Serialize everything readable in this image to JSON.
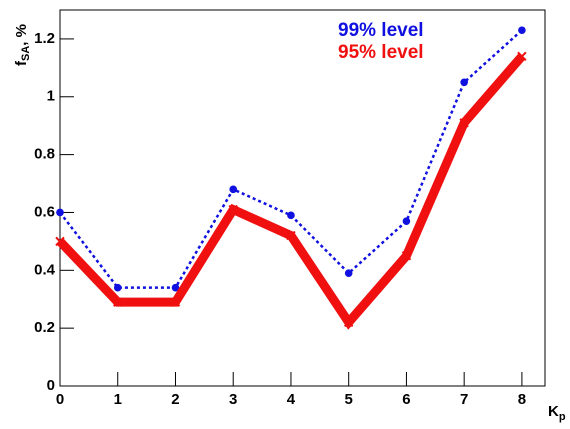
{
  "chart_data": {
    "type": "line",
    "x_label": {
      "main": "K",
      "sub": "p"
    },
    "y_label": {
      "main": "f",
      "sub": "SA",
      "suffix": ", %"
    },
    "x": [
      0,
      1,
      2,
      3,
      4,
      5,
      6,
      7,
      8
    ],
    "series": [
      {
        "name": "99% level",
        "color": "#1010e0",
        "line_style": "dotted",
        "marker": "circle",
        "values": [
          0.6,
          0.34,
          0.34,
          0.68,
          0.59,
          0.39,
          0.57,
          1.05,
          1.23
        ]
      },
      {
        "name": "95% level",
        "color": "#f01010",
        "line_style": "solid",
        "marker": "star",
        "values": [
          0.5,
          0.29,
          0.29,
          0.61,
          0.52,
          0.22,
          0.45,
          0.91,
          1.14
        ]
      }
    ],
    "xlim": [
      0,
      8.4
    ],
    "ylim": [
      0,
      1.3
    ],
    "xticks": [
      0,
      1,
      2,
      3,
      4,
      5,
      6,
      7,
      8
    ],
    "yticks": [
      0,
      0.2,
      0.4,
      0.6,
      0.8,
      1,
      1.2
    ],
    "grid": false
  }
}
